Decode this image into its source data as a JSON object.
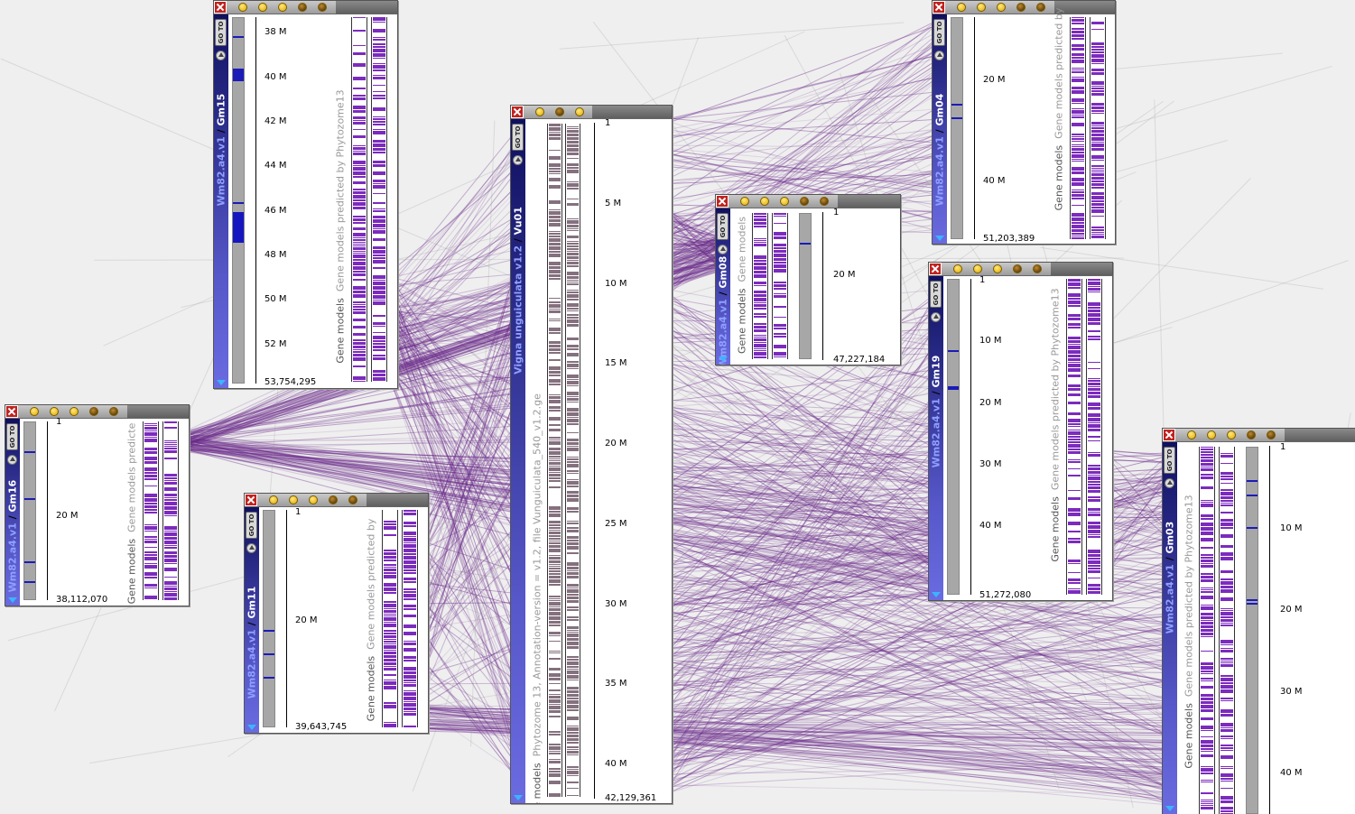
{
  "colors": {
    "link": "#6a2a8a",
    "gene": "#7b2bbd",
    "vu": "#84707e",
    "cyto_mark": "#1b1bb8"
  },
  "controls": {
    "goto": "GO TO"
  },
  "panels": [
    {
      "id": "gm15",
      "assembly": "Wm82.a4.v1",
      "chrom": "Gm15",
      "ticks": [
        "38 M",
        "40 M",
        "42 M",
        "44 M",
        "46 M",
        "48 M",
        "50 M",
        "52 M"
      ],
      "end": "53,754,295",
      "track_main": "Gene models",
      "track_sub": "Gene models predicted by Phytozome13"
    },
    {
      "id": "gm16",
      "assembly": "Wm82.a4.v1",
      "chrom": "Gm16",
      "ticks": [
        "1",
        "20 M"
      ],
      "end": "38,112,070",
      "track_main": "Gene models",
      "track_sub": "Gene models predicte"
    },
    {
      "id": "gm11",
      "assembly": "Wm82.a4.v1",
      "chrom": "Gm11",
      "ticks": [
        "1",
        "20 M"
      ],
      "end": "39,643,745",
      "track_main": "Gene models",
      "track_sub": "Gene models predicted by"
    },
    {
      "id": "vu01",
      "assembly": "Vigna unguiculata v1.2",
      "chrom": "Vu01",
      "ticks": [
        "1",
        "5 M",
        "10 M",
        "15 M",
        "20 M",
        "25 M",
        "30 M",
        "35 M",
        "40 M"
      ],
      "end": "42,129,361",
      "track_main": "Gene models",
      "track_sub": "Phytozome 13, Annotation-version = v1.2, file Vunguiculata_540_v1.2.ge"
    },
    {
      "id": "gm08",
      "assembly": "Wm82.a4.v1",
      "chrom": "Gm08",
      "ticks": [
        "1",
        "20 M"
      ],
      "end": "47,227,184",
      "track_main": "Gene models",
      "track_sub": "Gene models"
    },
    {
      "id": "gm04",
      "assembly": "Wm82.a4.v1",
      "chrom": "Gm04",
      "ticks": [
        "20 M",
        "40 M"
      ],
      "end": "51,203,389",
      "track_main": "Gene models",
      "track_sub": "Gene models predicted by"
    },
    {
      "id": "gm19",
      "assembly": "Wm82.a4.v1",
      "chrom": "Gm19",
      "ticks": [
        "1",
        "10 M",
        "20 M",
        "30 M",
        "40 M"
      ],
      "end": "51,272,080",
      "track_main": "Gene models",
      "track_sub": "Gene models predicted by Phytozome13"
    },
    {
      "id": "gm03",
      "assembly": "Wm82.a4.v1",
      "chrom": "Gm03",
      "ticks": [
        "1",
        "10 M",
        "20 M",
        "30 M",
        "40 M"
      ],
      "end": "",
      "track_main": "Gene models",
      "track_sub": "Gene models predicted by Phytozome13"
    }
  ]
}
